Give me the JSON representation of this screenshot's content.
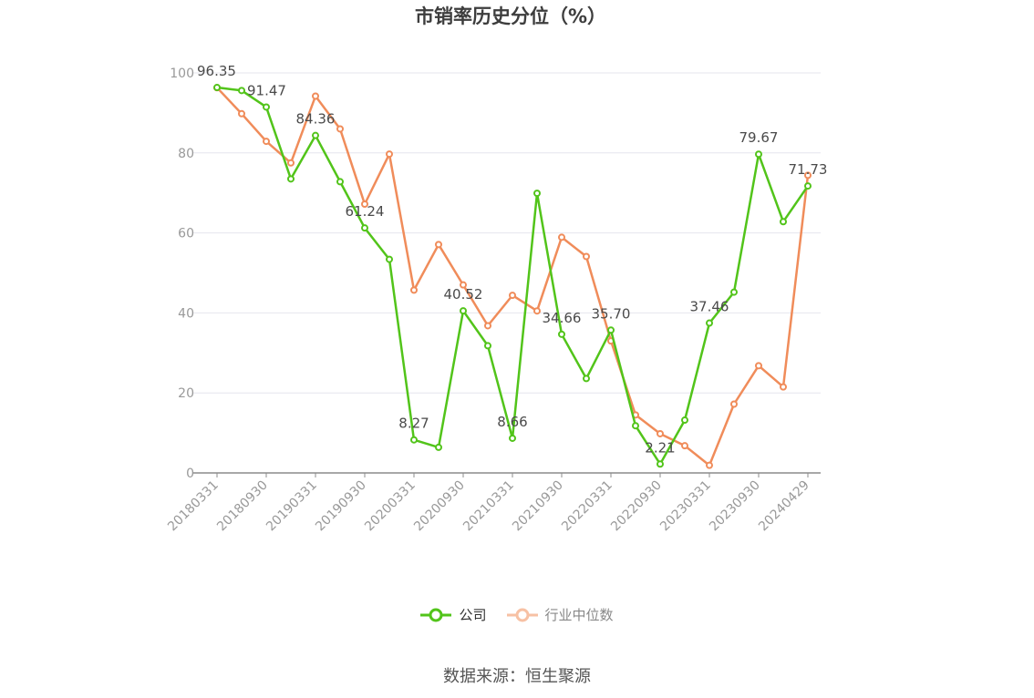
{
  "chart_data": {
    "type": "line",
    "title": "市销率历史分位（%）",
    "x": [
      "20180331",
      "20180630",
      "20180930",
      "20181231",
      "20190331",
      "20190630",
      "20190930",
      "20191231",
      "20200331",
      "20200630",
      "20200930",
      "20201231",
      "20210331",
      "20210630",
      "20210930",
      "20211231",
      "20220331",
      "20220630",
      "20220930",
      "20221231",
      "20230331",
      "20230630",
      "20230930",
      "20231231",
      "20240429"
    ],
    "x_tick_labels": [
      "20180331",
      "20180930",
      "20190331",
      "20190930",
      "20200331",
      "20200930",
      "20210331",
      "20210930",
      "20220331",
      "20220930",
      "20230331",
      "20230930",
      "20240429"
    ],
    "ylim": [
      0,
      100
    ],
    "y_ticks": [
      0,
      20,
      40,
      60,
      80,
      100
    ],
    "grid": true,
    "legend_position": "bottom",
    "series": [
      {
        "name": "公司",
        "color": "#52c41a",
        "values": [
          96.35,
          95.6,
          91.47,
          73.5,
          84.36,
          72.8,
          61.24,
          53.4,
          8.27,
          6.4,
          40.52,
          31.8,
          8.66,
          69.9,
          34.66,
          23.6,
          35.7,
          11.8,
          2.21,
          13.2,
          37.46,
          45.2,
          79.67,
          62.8,
          71.73
        ],
        "labels": {
          "0": "96.35",
          "2": "91.47",
          "4": "84.36",
          "6": "61.24",
          "8": "8.27",
          "10": "40.52",
          "12": "8.66",
          "14": "34.66",
          "16": "35.70",
          "18": "2.21",
          "20": "37.46",
          "22": "79.67",
          "24": "71.73"
        }
      },
      {
        "name": "行业中位数",
        "color": "#f08c5a",
        "values": [
          96.3,
          89.8,
          82.9,
          77.5,
          94.2,
          86.0,
          67.2,
          79.7,
          45.7,
          57.1,
          47.0,
          36.8,
          44.4,
          40.5,
          58.9,
          54.1,
          33.0,
          14.5,
          9.8,
          6.8,
          1.9,
          17.2,
          26.8,
          21.5,
          74.4
        ]
      }
    ]
  },
  "source_text": "数据来源：恒生聚源"
}
